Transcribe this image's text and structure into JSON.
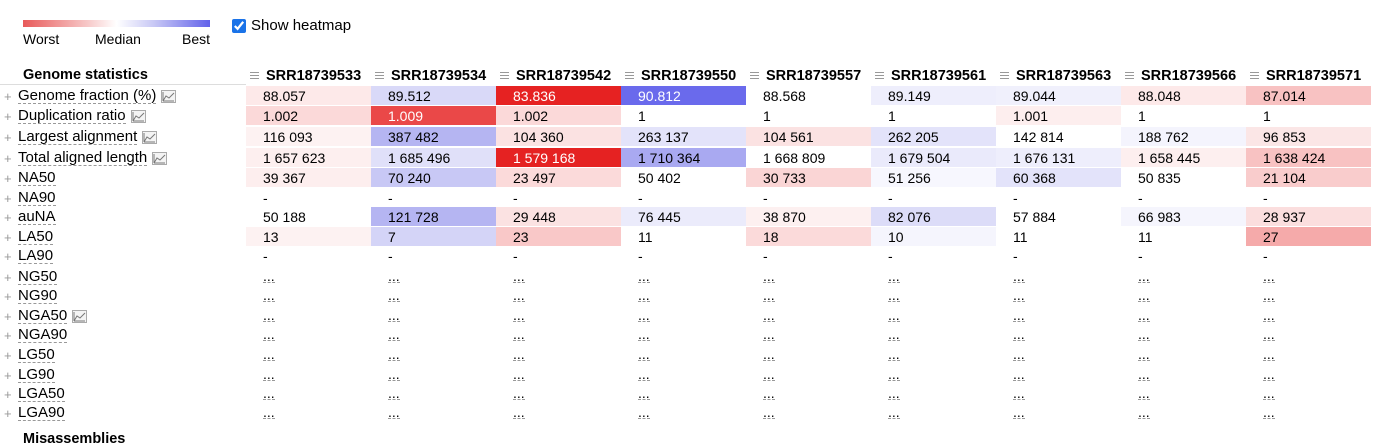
{
  "legend": {
    "worst": "Worst",
    "median": "Median",
    "best": "Best"
  },
  "heatmap_toggle": {
    "label": "Show heatmap",
    "checked": true
  },
  "section_title": "Genome statistics",
  "next_section_title": "Misassemblies",
  "columns": [
    "SRR18739533",
    "SRR18739534",
    "SRR18739542",
    "SRR18739550",
    "SRR18739557",
    "SRR18739561",
    "SRR18739563",
    "SRR18739566",
    "SRR18739571"
  ],
  "rows": [
    {
      "label": "Genome fraction (%)",
      "chart": true,
      "values": [
        "88.057",
        "89.512",
        "83.836",
        "90.812",
        "88.568",
        "89.149",
        "89.044",
        "88.048",
        "87.014"
      ],
      "colors": [
        "#fde9e9",
        "#d9d9f8",
        "#e62222",
        "#6a6aec",
        "#ffffff",
        "#eeeefc",
        "#f0f0fc",
        "#fde9e9",
        "#f8c2c2"
      ]
    },
    {
      "label": "Duplication ratio",
      "chart": true,
      "values": [
        "1.002",
        "1.009",
        "1.002",
        "1",
        "1",
        "1",
        "1.001",
        "1",
        "1"
      ],
      "colors": [
        "#fbd9d9",
        "#ea4848",
        "#fbd9d9",
        "#ffffff",
        "#ffffff",
        "#ffffff",
        "#fdeeee",
        "#ffffff",
        "#ffffff"
      ]
    },
    {
      "label": "Largest alignment",
      "chart": true,
      "values": [
        "116 093",
        "387 482",
        "104 360",
        "263 137",
        "104 561",
        "262 205",
        "142 814",
        "188 762",
        "96 853"
      ],
      "colors": [
        "#fdf2f2",
        "#b5b5f2",
        "#fbe2e2",
        "#e3e3fa",
        "#fbe2e2",
        "#e3e3fa",
        "#ffffff",
        "#f4f4fd",
        "#fbe6e6"
      ]
    },
    {
      "label": "Total aligned length",
      "chart": true,
      "values": [
        "1 657 623",
        "1 685 496",
        "1 579 168",
        "1 710 364",
        "1 668 809",
        "1 679 504",
        "1 676 131",
        "1 658 445",
        "1 638 424"
      ],
      "colors": [
        "#fdefef",
        "#e0e0f9",
        "#e52222",
        "#a9a9f1",
        "#ffffff",
        "#eaeafb",
        "#eeeefc",
        "#fdefef",
        "#f8c2c2"
      ]
    },
    {
      "label": "NA50",
      "chart": false,
      "values": [
        "39 367",
        "70 240",
        "23 497",
        "50 402",
        "30 733",
        "51 256",
        "60 368",
        "50 835",
        "21 104"
      ],
      "colors": [
        "#fdeeee",
        "#c8c8f5",
        "#fbdada",
        "#ffffff",
        "#fad5d5",
        "#f7f7fe",
        "#e3e3fa",
        "#ffffff",
        "#f9cccc"
      ]
    },
    {
      "label": "NA90",
      "chart": false,
      "values": [
        "-",
        "-",
        "-",
        "-",
        "-",
        "-",
        "-",
        "-",
        "-"
      ],
      "colors": [
        "",
        "",
        "",
        "",
        "",
        "",
        "",
        "",
        ""
      ]
    },
    {
      "label": "auNA",
      "chart": false,
      "values": [
        "50 188",
        "121 728",
        "29 448",
        "76 445",
        "38 870",
        "82 076",
        "57 884",
        "66 983",
        "28 937"
      ],
      "colors": [
        "#ffffff",
        "#b5b5f2",
        "#fbe2e2",
        "#ebebfb",
        "#fdf0f0",
        "#dcdcf8",
        "#ffffff",
        "#f5f5fd",
        "#fbdede"
      ]
    },
    {
      "label": "LA50",
      "chart": false,
      "values": [
        "13",
        "7",
        "23",
        "11",
        "18",
        "10",
        "11",
        "11",
        "27"
      ],
      "colors": [
        "#fdf2f2",
        "#d4d4f7",
        "#f9c8c8",
        "#ffffff",
        "#fbdada",
        "#f5f5fd",
        "#ffffff",
        "#ffffff",
        "#f5aaaa"
      ]
    },
    {
      "label": "LA90",
      "chart": false,
      "values": [
        "-",
        "-",
        "-",
        "-",
        "-",
        "-",
        "-",
        "-",
        "-"
      ],
      "colors": [
        "",
        "",
        "",
        "",
        "",
        "",
        "",
        "",
        ""
      ]
    },
    {
      "label": "NG50",
      "chart": false,
      "values": [
        "...",
        "...",
        "...",
        "...",
        "...",
        "...",
        "...",
        "...",
        "..."
      ],
      "colors": [
        "",
        "",
        "",
        "",
        "",
        "",
        "",
        "",
        ""
      ]
    },
    {
      "label": "NG90",
      "chart": false,
      "values": [
        "...",
        "...",
        "...",
        "...",
        "...",
        "...",
        "...",
        "...",
        "..."
      ],
      "colors": [
        "",
        "",
        "",
        "",
        "",
        "",
        "",
        "",
        ""
      ]
    },
    {
      "label": "NGA50",
      "chart": true,
      "values": [
        "...",
        "...",
        "...",
        "...",
        "...",
        "...",
        "...",
        "...",
        "..."
      ],
      "colors": [
        "",
        "",
        "",
        "",
        "",
        "",
        "",
        "",
        ""
      ]
    },
    {
      "label": "NGA90",
      "chart": false,
      "values": [
        "...",
        "...",
        "...",
        "...",
        "...",
        "...",
        "...",
        "...",
        "..."
      ],
      "colors": [
        "",
        "",
        "",
        "",
        "",
        "",
        "",
        "",
        ""
      ]
    },
    {
      "label": "LG50",
      "chart": false,
      "values": [
        "...",
        "...",
        "...",
        "...",
        "...",
        "...",
        "...",
        "...",
        "..."
      ],
      "colors": [
        "",
        "",
        "",
        "",
        "",
        "",
        "",
        "",
        ""
      ]
    },
    {
      "label": "LG90",
      "chart": false,
      "values": [
        "...",
        "...",
        "...",
        "...",
        "...",
        "...",
        "...",
        "...",
        "..."
      ],
      "colors": [
        "",
        "",
        "",
        "",
        "",
        "",
        "",
        "",
        ""
      ]
    },
    {
      "label": "LGA50",
      "chart": false,
      "values": [
        "...",
        "...",
        "...",
        "...",
        "...",
        "...",
        "...",
        "...",
        "..."
      ],
      "colors": [
        "",
        "",
        "",
        "",
        "",
        "",
        "",
        "",
        ""
      ]
    },
    {
      "label": "LGA90",
      "chart": false,
      "values": [
        "...",
        "...",
        "...",
        "...",
        "...",
        "...",
        "...",
        "...",
        "..."
      ],
      "colors": [
        "",
        "",
        "",
        "",
        "",
        "",
        "",
        "",
        ""
      ]
    }
  ]
}
